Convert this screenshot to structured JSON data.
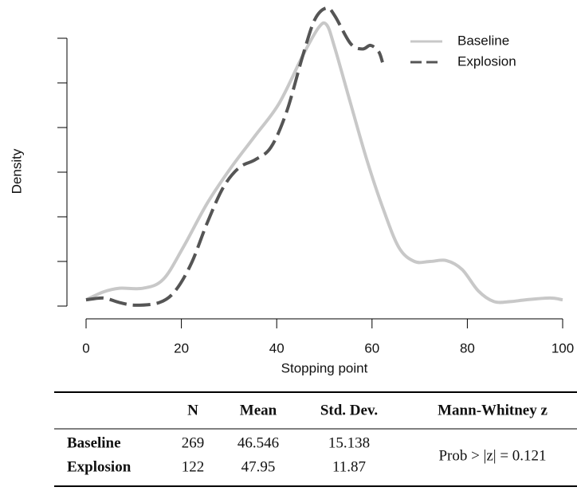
{
  "chart_data": {
    "type": "line",
    "xlabel": "Stopping point",
    "ylabel": "Density",
    "xlim": [
      0,
      100
    ],
    "xticks": [
      0,
      20,
      40,
      60,
      80,
      100
    ],
    "ylim": [
      0,
      0.034
    ],
    "yticks": [
      0,
      0.005,
      0.01,
      0.015,
      0.02,
      0.025,
      0.03
    ],
    "legend": "top right",
    "series": [
      {
        "name": "Baseline",
        "color": "#c8c8c8",
        "line_style": "solid",
        "x": [
          0,
          3.7,
          7,
          12,
          16.2,
          20.4,
          25.4,
          30.4,
          35.5,
          40.5,
          45.5,
          48.8,
          50.5,
          52.2,
          55.5,
          58.9,
          62.2,
          65.6,
          68.9,
          72.2,
          75.6,
          78.9,
          82.3,
          85.6,
          89,
          92.3,
          97.3,
          100
        ],
        "values": [
          0.0007,
          0.0016,
          0.002,
          0.002,
          0.003,
          0.0066,
          0.0115,
          0.0155,
          0.0191,
          0.0227,
          0.0281,
          0.0312,
          0.0315,
          0.0289,
          0.0227,
          0.0164,
          0.0111,
          0.0066,
          0.005,
          0.005,
          0.0051,
          0.0041,
          0.0017,
          0.0005,
          0.0005,
          0.0007,
          0.0009,
          0.0007
        ]
      },
      {
        "name": "Explosion",
        "color": "#555555",
        "line_style": "dashed",
        "x": [
          0,
          3.7,
          7,
          10.4,
          15.4,
          18.7,
          22.1,
          25.4,
          28.8,
          32.1,
          35.5,
          38.8,
          42.1,
          45.5,
          48,
          50.5,
          52.2,
          55.5,
          58,
          59.7,
          61.4,
          62.2
        ],
        "values": [
          0.0007,
          0.0009,
          0.0004,
          0.0001,
          0.0004,
          0.0017,
          0.0048,
          0.0093,
          0.0133,
          0.0155,
          0.0164,
          0.0178,
          0.0218,
          0.0281,
          0.0321,
          0.0334,
          0.0325,
          0.0294,
          0.0288,
          0.0292,
          0.0285,
          0.0273
        ]
      }
    ]
  },
  "table": {
    "columns": [
      "N",
      "Mean",
      "Std. Dev.",
      "Mann-Whitney z"
    ],
    "rows": [
      [
        "Baseline",
        "269",
        "46.546",
        "15.138"
      ],
      [
        "Explosion",
        "122",
        "47.95",
        "11.87"
      ]
    ],
    "note": "Prob > |z| = 0.121"
  }
}
